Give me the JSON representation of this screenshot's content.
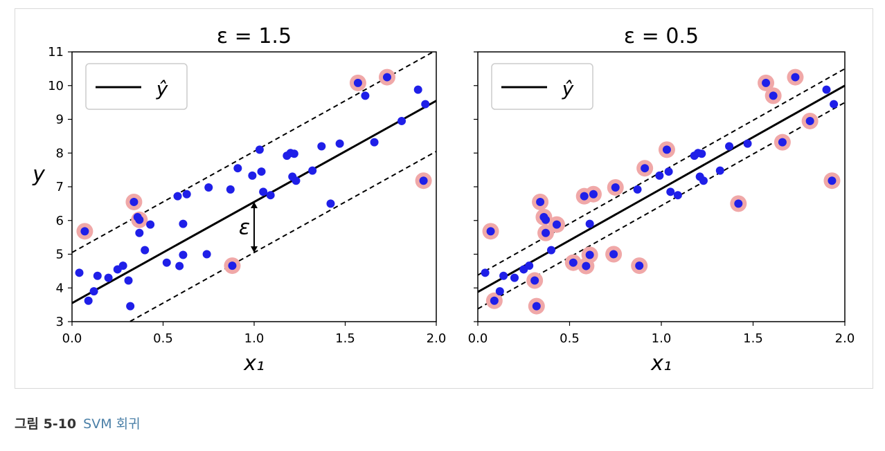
{
  "caption": {
    "label": "그림 5-10",
    "text": "SVM 회귀"
  },
  "colors": {
    "point": "#1f1fe8",
    "support_halo": "#f0a8a8",
    "line": "#000000",
    "caption_link": "#4a7fa7"
  },
  "chart_data": [
    {
      "type": "scatter",
      "title": "ε = 1.5",
      "xlabel": "x₁",
      "ylabel": "y",
      "xlim": [
        0.0,
        2.0
      ],
      "ylim": [
        3,
        11
      ],
      "x_ticks": [
        "0.0",
        "0.5",
        "1.0",
        "1.5",
        "2.0"
      ],
      "y_ticks": [
        "3",
        "4",
        "5",
        "6",
        "7",
        "8",
        "9",
        "10",
        "11"
      ],
      "legend": {
        "position": "top-left",
        "label": "ŷ"
      },
      "regression": {
        "slope": 3.0,
        "intercept": 3.55
      },
      "epsilon": 1.5,
      "epsilon_annotation": "ε",
      "points": [
        [
          0.04,
          4.45
        ],
        [
          0.07,
          5.68
        ],
        [
          0.09,
          3.62
        ],
        [
          0.12,
          3.9
        ],
        [
          0.14,
          4.36
        ],
        [
          0.2,
          4.3
        ],
        [
          0.25,
          4.55
        ],
        [
          0.28,
          4.66
        ],
        [
          0.31,
          4.22
        ],
        [
          0.32,
          3.46
        ],
        [
          0.34,
          6.55
        ],
        [
          0.36,
          6.1
        ],
        [
          0.37,
          6.02
        ],
        [
          0.37,
          5.63
        ],
        [
          0.4,
          5.12
        ],
        [
          0.43,
          5.88
        ],
        [
          0.52,
          4.75
        ],
        [
          0.58,
          6.72
        ],
        [
          0.59,
          4.65
        ],
        [
          0.61,
          4.98
        ],
        [
          0.61,
          5.9
        ],
        [
          0.63,
          6.78
        ],
        [
          0.74,
          5.0
        ],
        [
          0.75,
          6.98
        ],
        [
          0.87,
          6.92
        ],
        [
          0.88,
          4.66
        ],
        [
          0.91,
          7.55
        ],
        [
          0.99,
          7.33
        ],
        [
          1.03,
          8.1
        ],
        [
          1.04,
          7.45
        ],
        [
          1.05,
          6.85
        ],
        [
          1.09,
          6.75
        ],
        [
          1.18,
          7.92
        ],
        [
          1.2,
          8.0
        ],
        [
          1.21,
          7.3
        ],
        [
          1.22,
          7.98
        ],
        [
          1.23,
          7.18
        ],
        [
          1.32,
          7.48
        ],
        [
          1.37,
          8.2
        ],
        [
          1.42,
          6.5
        ],
        [
          1.47,
          8.28
        ],
        [
          1.57,
          10.08
        ],
        [
          1.61,
          9.7
        ],
        [
          1.66,
          8.32
        ],
        [
          1.73,
          10.25
        ],
        [
          1.81,
          8.95
        ],
        [
          1.9,
          9.88
        ],
        [
          1.93,
          7.18
        ],
        [
          1.94,
          9.45
        ]
      ],
      "support_vectors": [
        [
          0.07,
          5.68
        ],
        [
          0.34,
          6.55
        ],
        [
          0.37,
          6.02
        ],
        [
          0.88,
          4.66
        ],
        [
          1.57,
          10.08
        ],
        [
          1.73,
          10.25
        ],
        [
          1.93,
          7.18
        ]
      ]
    },
    {
      "type": "scatter",
      "title": "ε = 0.5",
      "xlabel": "x₁",
      "ylabel": "",
      "xlim": [
        0.0,
        2.0
      ],
      "ylim": [
        3,
        11
      ],
      "x_ticks": [
        "0.0",
        "0.5",
        "1.0",
        "1.5",
        "2.0"
      ],
      "y_ticks": [],
      "legend": {
        "position": "top-left",
        "label": "ŷ"
      },
      "regression": {
        "slope": 3.06,
        "intercept": 3.88
      },
      "epsilon": 0.5,
      "points": [
        [
          0.04,
          4.45
        ],
        [
          0.07,
          5.68
        ],
        [
          0.09,
          3.62
        ],
        [
          0.12,
          3.9
        ],
        [
          0.14,
          4.36
        ],
        [
          0.2,
          4.3
        ],
        [
          0.25,
          4.55
        ],
        [
          0.28,
          4.66
        ],
        [
          0.31,
          4.22
        ],
        [
          0.32,
          3.46
        ],
        [
          0.34,
          6.55
        ],
        [
          0.36,
          6.1
        ],
        [
          0.37,
          6.02
        ],
        [
          0.37,
          5.63
        ],
        [
          0.4,
          5.12
        ],
        [
          0.43,
          5.88
        ],
        [
          0.52,
          4.75
        ],
        [
          0.58,
          6.72
        ],
        [
          0.59,
          4.65
        ],
        [
          0.61,
          4.98
        ],
        [
          0.61,
          5.9
        ],
        [
          0.63,
          6.78
        ],
        [
          0.74,
          5.0
        ],
        [
          0.75,
          6.98
        ],
        [
          0.87,
          6.92
        ],
        [
          0.88,
          4.66
        ],
        [
          0.91,
          7.55
        ],
        [
          0.99,
          7.33
        ],
        [
          1.03,
          8.1
        ],
        [
          1.04,
          7.45
        ],
        [
          1.05,
          6.85
        ],
        [
          1.09,
          6.75
        ],
        [
          1.18,
          7.92
        ],
        [
          1.2,
          8.0
        ],
        [
          1.21,
          7.3
        ],
        [
          1.22,
          7.98
        ],
        [
          1.23,
          7.18
        ],
        [
          1.32,
          7.48
        ],
        [
          1.37,
          8.2
        ],
        [
          1.42,
          6.5
        ],
        [
          1.47,
          8.28
        ],
        [
          1.57,
          10.08
        ],
        [
          1.61,
          9.7
        ],
        [
          1.66,
          8.32
        ],
        [
          1.73,
          10.25
        ],
        [
          1.81,
          8.95
        ],
        [
          1.9,
          9.88
        ],
        [
          1.93,
          7.18
        ],
        [
          1.94,
          9.45
        ]
      ],
      "support_vectors": [
        [
          0.07,
          5.68
        ],
        [
          0.09,
          3.62
        ],
        [
          0.31,
          4.22
        ],
        [
          0.32,
          3.46
        ],
        [
          0.34,
          6.55
        ],
        [
          0.36,
          6.1
        ],
        [
          0.37,
          5.63
        ],
        [
          0.43,
          5.88
        ],
        [
          0.52,
          4.75
        ],
        [
          0.58,
          6.72
        ],
        [
          0.59,
          4.65
        ],
        [
          0.61,
          4.98
        ],
        [
          0.63,
          6.78
        ],
        [
          0.74,
          5.0
        ],
        [
          0.75,
          6.98
        ],
        [
          0.88,
          4.66
        ],
        [
          0.91,
          7.55
        ],
        [
          1.03,
          8.1
        ],
        [
          1.42,
          6.5
        ],
        [
          1.57,
          10.08
        ],
        [
          1.61,
          9.7
        ],
        [
          1.66,
          8.32
        ],
        [
          1.73,
          10.25
        ],
        [
          1.81,
          8.95
        ],
        [
          1.93,
          7.18
        ]
      ]
    }
  ]
}
